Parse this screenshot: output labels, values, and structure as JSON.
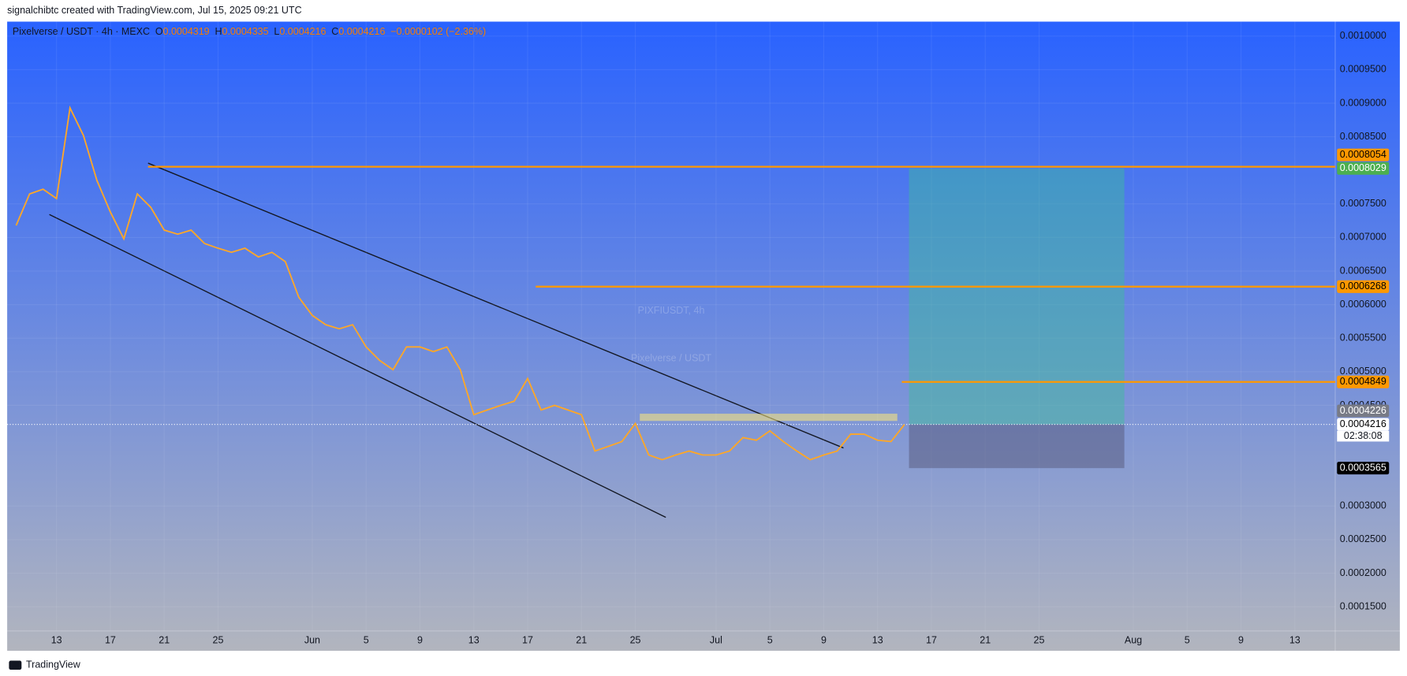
{
  "header": {
    "credit": "signalchibtc created with TradingView.com, Jul 15, 2025 09:21 UTC"
  },
  "footer": {
    "brand": "TradingView"
  },
  "chart_data": {
    "type": "line",
    "title": "Pixelverse / USDT · 4h · MEXC",
    "ohlc": [
      {
        "label": "O",
        "value": 0.0004319
      },
      {
        "label": "H",
        "value": 0.0004335
      },
      {
        "label": "L",
        "value": 0.0004216
      },
      {
        "label": "C",
        "value": 0.0004216
      }
    ],
    "change": "−0.0000102 (−2.36%)",
    "watermark": {
      "symbol": "PIXFIUSDT, 4h",
      "name": "Pixelverse / USDT"
    },
    "categories": [
      null,
      null,
      null,
      "13",
      null,
      null,
      null,
      "17",
      null,
      null,
      null,
      "21",
      null,
      null,
      null,
      "25",
      null,
      null,
      null,
      null,
      null,
      null,
      "Jun",
      null,
      null,
      null,
      "5",
      null,
      null,
      null,
      "9",
      null,
      null,
      null,
      "13",
      null,
      null,
      null,
      "17",
      null,
      null,
      null,
      "21",
      null,
      null,
      null,
      "25",
      null,
      null,
      null,
      null,
      null,
      "Jul",
      null,
      null,
      null,
      "5",
      null,
      null,
      null,
      "9",
      null,
      null,
      null,
      "13",
      null,
      null,
      null,
      "17",
      null,
      null,
      null,
      "21",
      null,
      null,
      null,
      "25",
      null,
      null,
      null,
      null,
      null,
      null,
      "Aug",
      null,
      null,
      null,
      "5",
      null,
      null,
      null,
      "9",
      null,
      null,
      null,
      "13",
      null,
      null
    ],
    "values": [
      0.000718,
      0.000765,
      0.000772,
      0.000758,
      0.000893,
      0.000852,
      0.000785,
      0.000738,
      0.000698,
      0.000765,
      0.000745,
      0.000711,
      0.000705,
      0.000711,
      0.000691,
      0.000684,
      0.000678,
      0.000684,
      0.000671,
      0.000678,
      0.000664,
      0.000611,
      0.000584,
      0.00057,
      0.000564,
      0.00057,
      0.000537,
      0.000517,
      0.000503,
      0.000537,
      0.000537,
      0.00053,
      0.000537,
      0.000503,
      0.000436,
      0.000443,
      0.00045,
      0.000456,
      0.00049,
      0.000443,
      0.00045,
      0.000443,
      0.000436,
      0.000382,
      0.000389,
      0.000396,
      0.000423,
      0.000376,
      0.000369,
      0.000376,
      0.000382,
      0.000376,
      0.000376,
      0.000382,
      0.000402,
      0.000398,
      0.000412,
      0.000396,
      0.000382,
      0.000369,
      0.000376,
      0.000382,
      0.000407,
      0.000407,
      0.000398,
      0.000396,
      0.0004216,
      null,
      null,
      null,
      null,
      null,
      null,
      null,
      null,
      null,
      null,
      null,
      null,
      null,
      null,
      null,
      null,
      null,
      null,
      null,
      null,
      null,
      null,
      null,
      null,
      null,
      null,
      null,
      null,
      null,
      null,
      null
    ],
    "color": "#ffa726",
    "ylim": [
      0.000114,
      0.0010215
    ],
    "yticks": [
      {
        "value": 0.001,
        "label": "0.0010000"
      },
      {
        "value": 0.00095,
        "label": "0.0009500"
      },
      {
        "value": 0.0009,
        "label": "0.0009000"
      },
      {
        "value": 0.00085,
        "label": "0.0008500"
      },
      {
        "value": 0.00075,
        "label": "0.0007500"
      },
      {
        "value": 0.0007,
        "label": "0.0007000"
      },
      {
        "value": 0.00065,
        "label": "0.0006500"
      },
      {
        "value": 0.0006,
        "label": "0.0006000"
      },
      {
        "value": 0.00055,
        "label": "0.0005500"
      },
      {
        "value": 0.0005,
        "label": "0.0005000"
      },
      {
        "value": 0.00045,
        "label": "0.0004500"
      },
      {
        "value": 0.0003,
        "label": "0.0003000"
      },
      {
        "value": 0.00025,
        "label": "0.0002500"
      },
      {
        "value": 0.0002,
        "label": "0.0002000"
      },
      {
        "value": 0.00015,
        "label": "0.0001500"
      }
    ],
    "grid": true,
    "price_tags": [
      {
        "value": 0.0008054,
        "color": "#ff9800",
        "text_color": "#000000"
      },
      {
        "value": 0.0008029,
        "color": "#4caf50",
        "text_color": "#ffffff"
      },
      {
        "value": 0.0006268,
        "color": "#ff9800",
        "text_color": "#000000"
      },
      {
        "value": 0.0004849,
        "color": "#ff9800",
        "text_color": "#000000"
      },
      {
        "value": 0.0004226,
        "color": "#787b86",
        "text_color": "#ffffff"
      },
      {
        "value": 0.0004216,
        "color": "#ffffff",
        "text_color": "#000000"
      },
      {
        "value": 0.0003565,
        "color": "#000000",
        "text_color": "#ffffff"
      }
    ],
    "countdown": "02:38:08"
  }
}
